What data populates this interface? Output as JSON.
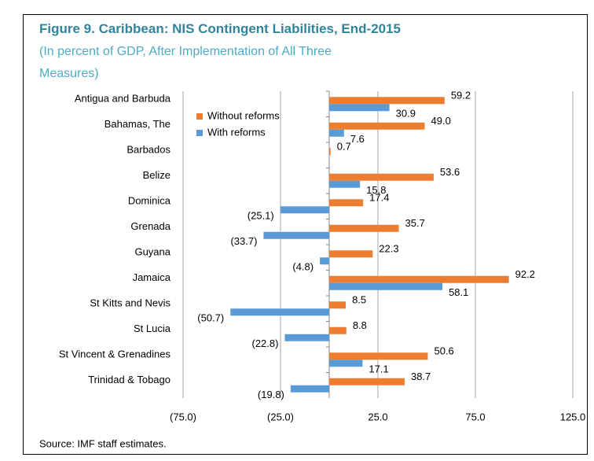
{
  "chart_data": {
    "type": "hbar",
    "title": "Figure 9. Caribbean: NIS Contingent Liabilities, End-2015",
    "subtitle": [
      "(In percent of GDP, After Implementation of All Three",
      "Measures)"
    ],
    "source": "Source: IMF staff estimates.",
    "categories": [
      "Antigua and Barbuda",
      "Bahamas, The",
      "Barbados",
      "Belize",
      "Dominica",
      "Grenada",
      "Guyana",
      "Jamaica",
      "St Kitts and Nevis",
      "St Lucia",
      "St Vincent & Grenadines",
      "Trinidad & Tobago"
    ],
    "series": [
      {
        "name": "Without reforms",
        "color": "#ed7d31",
        "values": [
          59.2,
          49.0,
          0.7,
          53.6,
          17.4,
          35.7,
          22.3,
          92.2,
          8.5,
          8.8,
          50.6,
          38.7
        ],
        "value_labels": [
          "59.2",
          "49.0",
          "0.7",
          "53.6",
          "17.4",
          "35.7",
          "22.3",
          "92.2",
          "8.5",
          "8.8",
          "50.6",
          "38.7"
        ]
      },
      {
        "name": "With reforms",
        "color": "#5b9bd5",
        "values": [
          30.9,
          7.6,
          null,
          15.8,
          -25.1,
          -33.7,
          -4.8,
          58.1,
          -50.7,
          -22.8,
          17.1,
          -19.8
        ],
        "value_labels": [
          "30.9",
          "7.6",
          null,
          "15.8",
          "(25.1)",
          "(33.7)",
          "(4.8)",
          "58.1",
          "(50.7)",
          "(22.8)",
          "17.1",
          "(19.8)"
        ]
      }
    ],
    "xlim": [
      -75,
      125
    ],
    "xticks": [
      {
        "value": -75,
        "label": "(75.0)"
      },
      {
        "value": -25,
        "label": "(25.0)"
      },
      {
        "value": 25,
        "label": "25.0"
      },
      {
        "value": 75,
        "label": "75.0"
      },
      {
        "value": 125,
        "label": "125.0"
      }
    ],
    "grid": true,
    "legend": "upper left"
  }
}
